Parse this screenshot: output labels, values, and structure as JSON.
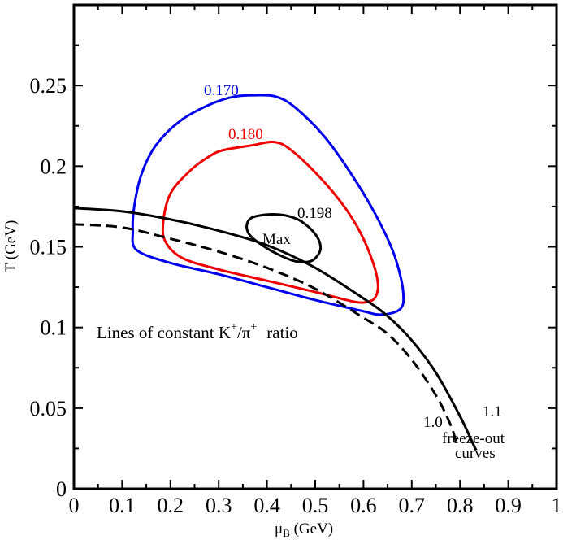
{
  "chart_data": {
    "type": "line",
    "title": "",
    "xlabel": "μ",
    "xlabel_sub": "B",
    "xlabel_unit": " (GeV)",
    "ylabel": "T (GeV)",
    "xlim": [
      0,
      1
    ],
    "ylim": [
      0,
      0.25
    ],
    "ylim_plot": [
      0,
      0.3
    ],
    "x_ticks": [
      {
        "value": 0,
        "label": "0"
      },
      {
        "value": 0.1,
        "label": "0.1"
      },
      {
        "value": 0.2,
        "label": "0.2"
      },
      {
        "value": 0.3,
        "label": "0.3"
      },
      {
        "value": 0.4,
        "label": "0.4"
      },
      {
        "value": 0.5,
        "label": "0.5"
      },
      {
        "value": 0.6,
        "label": "0.6"
      },
      {
        "value": 0.7,
        "label": "0.7"
      },
      {
        "value": 0.8,
        "label": "0.8"
      },
      {
        "value": 0.9,
        "label": "0.9"
      },
      {
        "value": 1.0,
        "label": "1"
      }
    ],
    "y_ticks": [
      {
        "value": 0,
        "label": "0"
      },
      {
        "value": 0.05,
        "label": "0.05"
      },
      {
        "value": 0.1,
        "label": "0.1"
      },
      {
        "value": 0.15,
        "label": "0.15"
      },
      {
        "value": 0.2,
        "label": "0.2"
      },
      {
        "value": 0.25,
        "label": "0.25"
      }
    ],
    "grid": false,
    "series": [
      {
        "name": "0.170",
        "color": "#0000ee",
        "style": "solid",
        "closed": true,
        "points": [
          [
            0.375,
            0.244
          ],
          [
            0.42,
            0.243
          ],
          [
            0.46,
            0.236
          ],
          [
            0.52,
            0.218
          ],
          [
            0.575,
            0.195
          ],
          [
            0.625,
            0.17
          ],
          [
            0.66,
            0.148
          ],
          [
            0.678,
            0.13
          ],
          [
            0.683,
            0.118
          ],
          [
            0.678,
            0.112
          ],
          [
            0.66,
            0.109
          ],
          [
            0.63,
            0.108
          ],
          [
            0.6,
            0.11
          ],
          [
            0.5,
            0.117
          ],
          [
            0.4,
            0.125
          ],
          [
            0.3,
            0.133
          ],
          [
            0.2,
            0.14
          ],
          [
            0.13,
            0.148
          ],
          [
            0.122,
            0.16
          ],
          [
            0.125,
            0.175
          ],
          [
            0.14,
            0.195
          ],
          [
            0.17,
            0.213
          ],
          [
            0.22,
            0.228
          ],
          [
            0.28,
            0.238
          ],
          [
            0.33,
            0.243
          ]
        ]
      },
      {
        "name": "0.180",
        "color": "#ee0000",
        "style": "solid",
        "closed": true,
        "points": [
          [
            0.31,
            0.21
          ],
          [
            0.37,
            0.213
          ],
          [
            0.415,
            0.215
          ],
          [
            0.45,
            0.21
          ],
          [
            0.51,
            0.193
          ],
          [
            0.56,
            0.175
          ],
          [
            0.595,
            0.158
          ],
          [
            0.62,
            0.14
          ],
          [
            0.63,
            0.127
          ],
          [
            0.625,
            0.119
          ],
          [
            0.61,
            0.116
          ],
          [
            0.58,
            0.116
          ],
          [
            0.5,
            0.122
          ],
          [
            0.4,
            0.129
          ],
          [
            0.3,
            0.136
          ],
          [
            0.225,
            0.143
          ],
          [
            0.19,
            0.153
          ],
          [
            0.185,
            0.165
          ],
          [
            0.2,
            0.183
          ],
          [
            0.24,
            0.197
          ],
          [
            0.28,
            0.206
          ]
        ]
      },
      {
        "name": "0.198",
        "color": "#000000",
        "style": "solid",
        "closed": true,
        "points": [
          [
            0.445,
            0.169
          ],
          [
            0.47,
            0.166
          ],
          [
            0.497,
            0.159
          ],
          [
            0.51,
            0.152
          ],
          [
            0.508,
            0.146
          ],
          [
            0.49,
            0.141
          ],
          [
            0.46,
            0.141
          ],
          [
            0.425,
            0.145
          ],
          [
            0.39,
            0.151
          ],
          [
            0.365,
            0.157
          ],
          [
            0.358,
            0.163
          ],
          [
            0.368,
            0.168
          ],
          [
            0.4,
            0.17
          ],
          [
            0.425,
            0.17
          ]
        ]
      },
      {
        "name": "1.1",
        "color": "#000000",
        "style": "solid",
        "closed": false,
        "points": [
          [
            0,
            0.174
          ],
          [
            0.1,
            0.172
          ],
          [
            0.2,
            0.167
          ],
          [
            0.3,
            0.16
          ],
          [
            0.4,
            0.151
          ],
          [
            0.5,
            0.137
          ],
          [
            0.6,
            0.118
          ],
          [
            0.65,
            0.107
          ],
          [
            0.7,
            0.092
          ],
          [
            0.75,
            0.072
          ],
          [
            0.8,
            0.045
          ],
          [
            0.83,
            0.026
          ],
          [
            0.834,
            0.024
          ]
        ]
      },
      {
        "name": "1.0",
        "color": "#000000",
        "style": "dashed",
        "closed": false,
        "points": [
          [
            0,
            0.164
          ],
          [
            0.1,
            0.162
          ],
          [
            0.2,
            0.155
          ],
          [
            0.3,
            0.147
          ],
          [
            0.4,
            0.137
          ],
          [
            0.5,
            0.124
          ],
          [
            0.6,
            0.106
          ],
          [
            0.65,
            0.096
          ],
          [
            0.7,
            0.08
          ],
          [
            0.75,
            0.058
          ],
          [
            0.78,
            0.04
          ],
          [
            0.793,
            0.028
          ]
        ]
      }
    ],
    "annotations": {
      "contour_170": "0.170",
      "contour_180": "0.180",
      "contour_198": "0.198",
      "max": "Max",
      "lines_text": "Lines of constant K",
      "lines_sup1": "+",
      "lines_slash": "/π",
      "lines_sup2": "+",
      "lines_ratio": "ratio",
      "curve_10": "1.0",
      "curve_11": "1.1",
      "freeze1": "freeze-out",
      "freeze2": "curves"
    }
  }
}
